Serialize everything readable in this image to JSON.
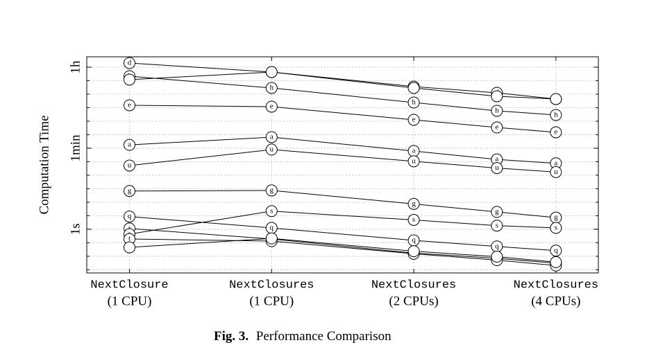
{
  "chart_data": {
    "type": "line",
    "ylabel": "Computation Time",
    "caption_label": "Fig. 3.",
    "caption": "Performance Comparison",
    "x": [
      0.5,
      1,
      2,
      3,
      4
    ],
    "xlim": [
      0.406,
      4.92
    ],
    "xscale": "log",
    "xticks": [
      {
        "value": 0.5,
        "label": [
          "NextClosure",
          "(1 CPU)"
        ]
      },
      {
        "value": 1,
        "label": [
          "NextClosures",
          "(1 CPU)"
        ]
      },
      {
        "value": 2,
        "label": [
          "NextClosures",
          "(2 CPUs)"
        ]
      },
      {
        "value": 4,
        "label": [
          "NextClosures",
          "(4 CPUs)"
        ]
      }
    ],
    "ylim": [
      0.11,
      6080
    ],
    "yscale": "log",
    "yticks": [
      {
        "value": 1,
        "label": "1s"
      },
      {
        "value": 60,
        "label": "1min"
      },
      {
        "value": 3600,
        "label": "1h"
      }
    ],
    "yminor_divisions": 6,
    "grid": true,
    "color": "#000000",
    "series": [
      {
        "name": "d",
        "values": [
          4440,
          2818,
          1352,
          986,
          720
        ]
      },
      {
        "name": "h",
        "values": [
          2285,
          1259,
          604,
          397,
          322
        ]
      },
      {
        "name": null,
        "values": [
          1918,
          2818,
          1259,
          828,
          720
        ]
      },
      {
        "name": "e",
        "values": [
          525,
          490,
          252,
          171,
          134
        ]
      },
      {
        "name": "a",
        "values": [
          71,
          105,
          52,
          34,
          28
        ]
      },
      {
        "name": "u",
        "values": [
          25,
          56,
          31,
          22,
          18
        ]
      },
      {
        "name": "g",
        "values": [
          6.9,
          7.1,
          3.6,
          2.4,
          1.8
        ]
      },
      {
        "name": "q",
        "values": [
          1.9,
          1.07,
          0.57,
          0.42,
          0.34
        ]
      },
      {
        "name": "r",
        "values": [
          1.04,
          0.61,
          0.3,
          0.23,
          0.18
        ]
      },
      {
        "name": "s",
        "values": [
          0.78,
          2.5,
          1.6,
          1.2,
          1.07
        ]
      },
      {
        "name": "t",
        "values": [
          0.61,
          0.55,
          0.29,
          0.21,
          0.16
        ]
      },
      {
        "name": null,
        "values": [
          0.4,
          0.63,
          0.33,
          0.25,
          0.19
        ]
      }
    ]
  }
}
